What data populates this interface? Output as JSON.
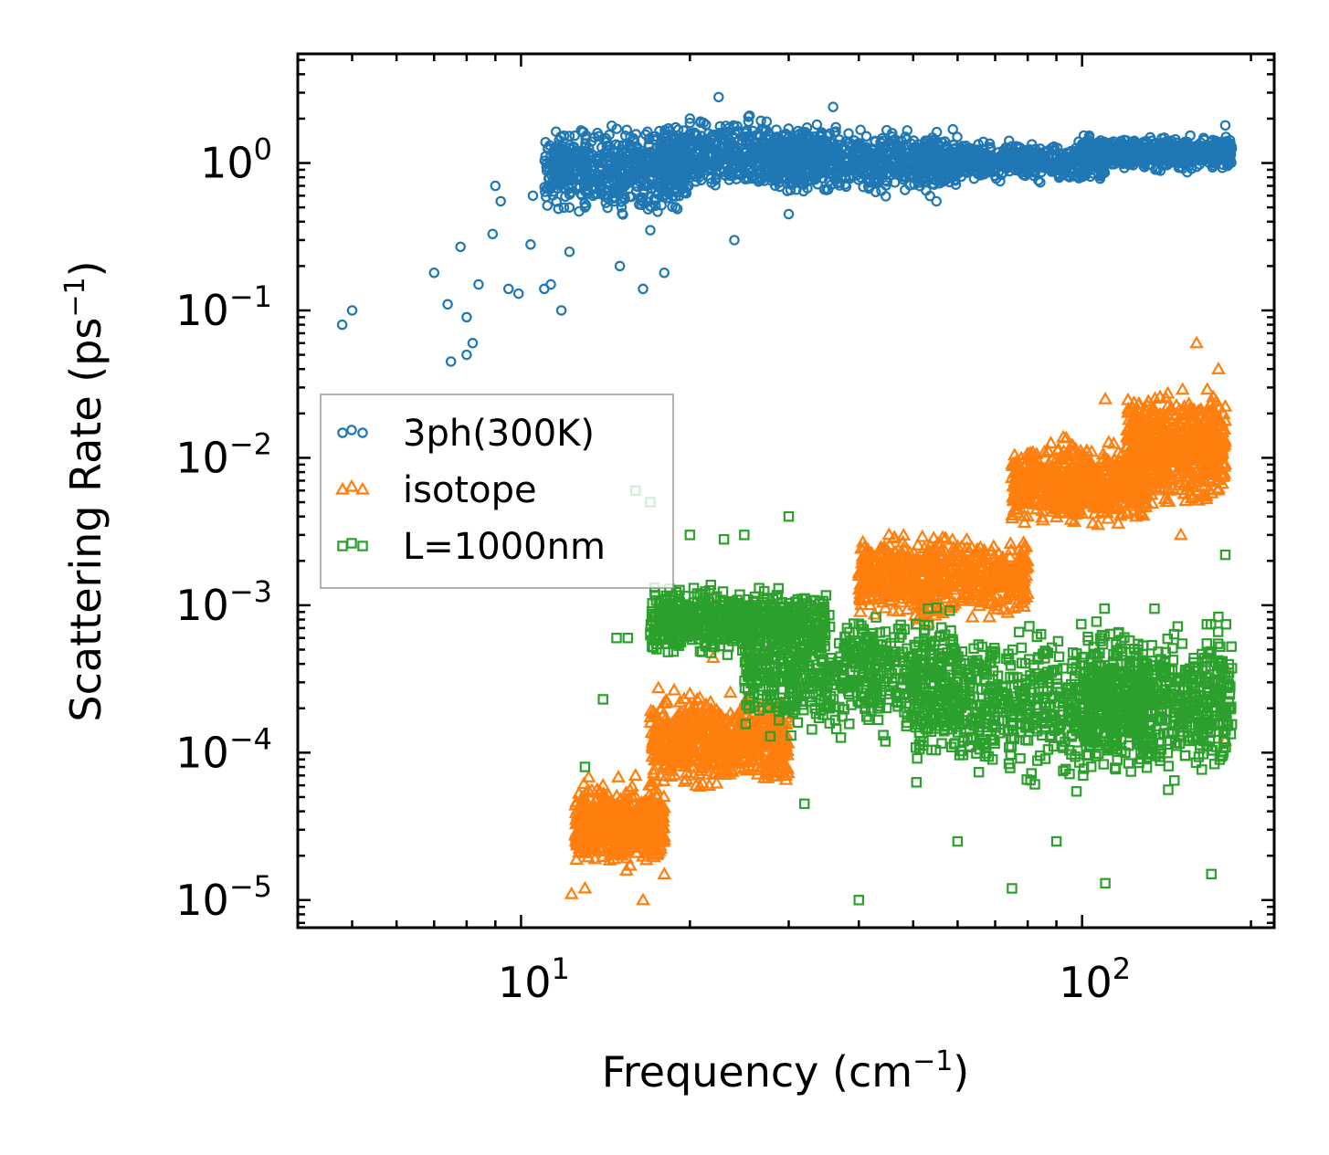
{
  "chart_data": {
    "type": "scatter",
    "xscale": "log",
    "yscale": "log",
    "xlabel": {
      "text": "Frequency (cm",
      "sup": "−1",
      "tail": ")"
    },
    "ylabel": {
      "text": "Scattering Rate (ps",
      "sup": "−1",
      "tail": ")"
    },
    "xlim": [
      4,
      220
    ],
    "ylim": [
      6.5e-06,
      5.5
    ],
    "x_ticks": [
      {
        "value": 10,
        "base": "10",
        "exp": "1"
      },
      {
        "value": 100,
        "base": "10",
        "exp": "2"
      }
    ],
    "y_ticks": [
      {
        "value": 1,
        "base": "10",
        "exp": "0"
      },
      {
        "value": 0.1,
        "base": "10",
        "exp": "−1"
      },
      {
        "value": 0.01,
        "base": "10",
        "exp": "−2"
      },
      {
        "value": 0.001,
        "base": "10",
        "exp": "−3"
      },
      {
        "value": 0.0001,
        "base": "10",
        "exp": "−4"
      },
      {
        "value": 1e-05,
        "base": "10",
        "exp": "−5"
      }
    ],
    "legend_position": "center-left",
    "series": [
      {
        "name": "3ph(300K)",
        "marker": "circle",
        "color": "#1f77b4",
        "sample_points": [
          [
            4.8,
            0.08
          ],
          [
            5.0,
            0.1
          ],
          [
            7.0,
            0.18
          ],
          [
            7.4,
            0.11
          ],
          [
            7.5,
            0.045
          ],
          [
            7.8,
            0.27
          ],
          [
            8.0,
            0.05
          ],
          [
            8.0,
            0.09
          ],
          [
            8.2,
            0.06
          ],
          [
            8.4,
            0.15
          ],
          [
            8.9,
            0.33
          ],
          [
            9.0,
            0.7
          ],
          [
            9.2,
            0.55
          ],
          [
            9.5,
            0.14
          ],
          [
            9.9,
            0.13
          ],
          [
            10.4,
            0.28
          ],
          [
            10.5,
            0.6
          ],
          [
            11.0,
            0.14
          ],
          [
            11.3,
            0.15
          ],
          [
            11.8,
            0.1
          ],
          [
            12.2,
            0.25
          ],
          [
            13.0,
            0.5
          ],
          [
            14.0,
            1.0
          ],
          [
            15.0,
            0.2
          ],
          [
            16.5,
            0.14
          ],
          [
            17.0,
            0.35
          ],
          [
            18.0,
            0.18
          ],
          [
            20.0,
            2.0
          ],
          [
            22.5,
            2.8
          ],
          [
            24,
            0.3
          ],
          [
            30,
            0.45
          ],
          [
            36,
            2.4
          ],
          [
            55,
            0.55
          ],
          [
            60,
            0.9
          ],
          [
            100,
            1.0
          ],
          [
            180,
            1.8
          ]
        ],
        "dense_bands": [
          {
            "x": [
              11,
              20
            ],
            "y": [
              0.4,
              2.0
            ]
          },
          {
            "x": [
              18,
              35
            ],
            "y": [
              0.55,
              2.3
            ]
          },
          {
            "x": [
              28,
              60
            ],
            "y": [
              0.55,
              1.9
            ]
          },
          {
            "x": [
              50,
              110
            ],
            "y": [
              0.7,
              1.5
            ]
          },
          {
            "x": [
              100,
              185
            ],
            "y": [
              0.85,
              1.6
            ]
          }
        ]
      },
      {
        "name": "isotope",
        "marker": "triangle",
        "color": "#ff7f0e",
        "sample_points": [
          [
            12.3,
            1.1e-05
          ],
          [
            12.6,
            2.4e-05
          ],
          [
            13.0,
            1.2e-05
          ],
          [
            13.5,
            3.5e-05
          ],
          [
            14.0,
            6e-05
          ],
          [
            15.0,
            2.5e-05
          ],
          [
            16.0,
            7e-05
          ],
          [
            16.5,
            1e-05
          ],
          [
            17.5,
            0.00015
          ],
          [
            18.0,
            1.5e-05
          ],
          [
            20.0,
            0.00025
          ],
          [
            22.0,
            0.00044
          ],
          [
            25.0,
            0.00012
          ],
          [
            28.0,
            0.0002
          ],
          [
            31.0,
            0.0003
          ],
          [
            45.0,
            0.0015
          ],
          [
            60.0,
            0.0025
          ],
          [
            80.0,
            0.004
          ],
          [
            110.0,
            0.025
          ],
          [
            130.0,
            0.005
          ],
          [
            150.0,
            0.003
          ],
          [
            160.0,
            0.06
          ],
          [
            175.0,
            0.04
          ],
          [
            180.0,
            0.00038
          ],
          [
            180.0,
            0.00012
          ]
        ],
        "dense_bands": [
          {
            "x": [
              12.5,
              18
            ],
            "y": [
              1.5e-05,
              7e-05
            ]
          },
          {
            "x": [
              17,
              30
            ],
            "y": [
              5e-05,
              0.0003
            ]
          },
          {
            "x": [
              40,
              80
            ],
            "y": [
              0.0007,
              0.0035
            ]
          },
          {
            "x": [
              75,
              130
            ],
            "y": [
              0.003,
              0.015
            ]
          },
          {
            "x": [
              120,
              180
            ],
            "y": [
              0.004,
              0.035
            ]
          }
        ]
      },
      {
        "name": "L=1000nm",
        "marker": "square",
        "color": "#2ca02c",
        "sample_points": [
          [
            14.8,
            0.0006
          ],
          [
            15.5,
            0.0006
          ],
          [
            16.0,
            0.006
          ],
          [
            17.0,
            0.005
          ],
          [
            20.0,
            0.003
          ],
          [
            23.0,
            0.0028
          ],
          [
            25.0,
            0.003
          ],
          [
            30.0,
            0.004
          ],
          [
            14.0,
            0.00023
          ],
          [
            13.0,
            8e-05
          ],
          [
            32.0,
            4.5e-05
          ],
          [
            40.0,
            1e-05
          ],
          [
            60.0,
            2.5e-05
          ],
          [
            75.0,
            1.2e-05
          ],
          [
            90.0,
            2.5e-05
          ],
          [
            110.0,
            1.3e-05
          ],
          [
            170.0,
            1.5e-05
          ],
          [
            180.0,
            0.0022
          ]
        ],
        "dense_bands": [
          {
            "x": [
              17,
              35
            ],
            "y": [
              0.0004,
              0.0015
            ]
          },
          {
            "x": [
              25,
              60
            ],
            "y": [
              0.0001,
              0.0012
            ]
          },
          {
            "x": [
              50,
              130
            ],
            "y": [
              5e-05,
              0.0009
            ]
          },
          {
            "x": [
              100,
              185
            ],
            "y": [
              5e-05,
              0.001
            ]
          }
        ]
      }
    ]
  }
}
